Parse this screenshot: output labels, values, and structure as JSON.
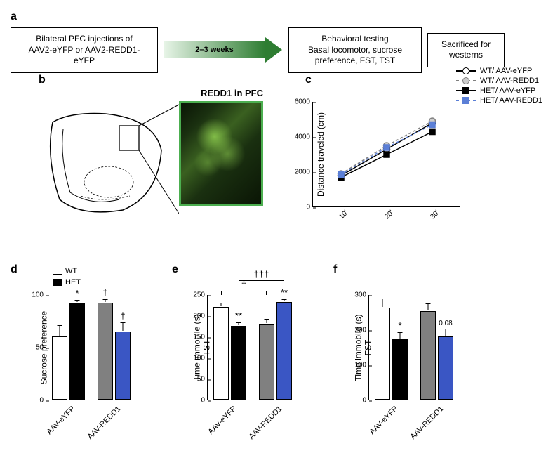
{
  "panel_a": {
    "label": "a",
    "box1_line1": "Bilateral PFC injections of",
    "box1_line2": "AAV2-eYFP or AAV2-REDD1-eYFP",
    "arrow_text": "2–3 weeks",
    "box2_line1": "Behavioral testing",
    "box2_line2": "Basal locomotor, sucrose",
    "box2_line3": "preference, FST, TST",
    "box3_line1": "Sacrificed for",
    "box3_line2": "westerns",
    "arrow_gradient_start": "#e8f5e8",
    "arrow_gradient_end": "#2e7d32"
  },
  "panel_b": {
    "label": "b",
    "title": "REDD1 in PFC",
    "image_border_color": "#4caf50",
    "image_bg": "#0a1505"
  },
  "panel_c": {
    "label": "c",
    "type": "line",
    "ylabel": "Distance traveled (cm)",
    "x_categories": [
      "10'",
      "20'",
      "30'"
    ],
    "ylim": [
      0,
      6000
    ],
    "yticks": [
      0,
      2000,
      4000,
      6000
    ],
    "series": [
      {
        "name": "WT/ AAV-eYFP",
        "values": [
          1800,
          3300,
          4800
        ],
        "color": "#000000",
        "fill": "#ffffff",
        "marker": "circle",
        "dash": "solid"
      },
      {
        "name": "WT/ AAV-REDD1",
        "values": [
          1900,
          3500,
          4900
        ],
        "color": "#808080",
        "fill": "#cccccc",
        "marker": "circle",
        "dash": "dashed"
      },
      {
        "name": "HET/ AAV-eYFP",
        "values": [
          1700,
          3000,
          4300
        ],
        "color": "#000000",
        "fill": "#000000",
        "marker": "square",
        "dash": "solid"
      },
      {
        "name": "HET/ AAV-REDD1",
        "values": [
          1850,
          3400,
          4700
        ],
        "color": "#5b7fd6",
        "fill": "#5b7fd6",
        "marker": "square",
        "dash": "dashed"
      }
    ],
    "label_fontsize": 12
  },
  "bar_legend": {
    "items": [
      {
        "label": "WT",
        "color": "#ffffff"
      },
      {
        "label": "HET",
        "color": "#000000"
      }
    ]
  },
  "x_groups": [
    "AAV-eYFP",
    "AAV-REDD1"
  ],
  "panel_d": {
    "label": "d",
    "type": "bar",
    "ylabel": "Sucrose preference",
    "ylim": [
      0,
      100
    ],
    "yticks": [
      0,
      50,
      100
    ],
    "bars": [
      {
        "value": 60,
        "err": 10,
        "color": "#ffffff",
        "sig": ""
      },
      {
        "value": 92,
        "err": 2,
        "color": "#000000",
        "sig": "*"
      },
      {
        "value": 92,
        "err": 3,
        "color": "#808080",
        "sig": "†"
      },
      {
        "value": 65,
        "err": 8,
        "color": "#3a56c4",
        "sig": "†"
      }
    ],
    "bar_width": 0.7
  },
  "panel_e": {
    "label": "e",
    "type": "bar",
    "ylabel_line1": "Time immobile (s)",
    "ylabel_line2": "TST",
    "ylim": [
      0,
      250
    ],
    "yticks": [
      0,
      50,
      100,
      150,
      200,
      250
    ],
    "bars": [
      {
        "value": 220,
        "err": 8,
        "color": "#ffffff",
        "sig": ""
      },
      {
        "value": 175,
        "err": 6,
        "color": "#000000",
        "sig": "**"
      },
      {
        "value": 180,
        "err": 10,
        "color": "#808080",
        "sig": ""
      },
      {
        "value": 232,
        "err": 5,
        "color": "#3a56c4",
        "sig": "**"
      }
    ],
    "brackets": [
      {
        "from": 0,
        "to": 2,
        "label": "†",
        "y": 260
      },
      {
        "from": 1,
        "to": 3,
        "label": "†††",
        "y": 285
      }
    ]
  },
  "panel_f": {
    "label": "f",
    "type": "bar",
    "ylabel_line1": "Time immobile (s)",
    "ylabel_line2": "FST",
    "ylim": [
      0,
      300
    ],
    "yticks": [
      0,
      100,
      200,
      300
    ],
    "bars": [
      {
        "value": 262,
        "err": 25,
        "color": "#ffffff",
        "sig": ""
      },
      {
        "value": 172,
        "err": 18,
        "color": "#000000",
        "sig": "*"
      },
      {
        "value": 252,
        "err": 20,
        "color": "#808080",
        "sig": ""
      },
      {
        "value": 180,
        "err": 20,
        "color": "#3a56c4",
        "sig": "0.08"
      }
    ]
  },
  "colors": {
    "wt_eyfp": "#ffffff",
    "het_eyfp": "#000000",
    "wt_redd1": "#808080",
    "het_redd1": "#3a56c4",
    "axis": "#000000"
  }
}
